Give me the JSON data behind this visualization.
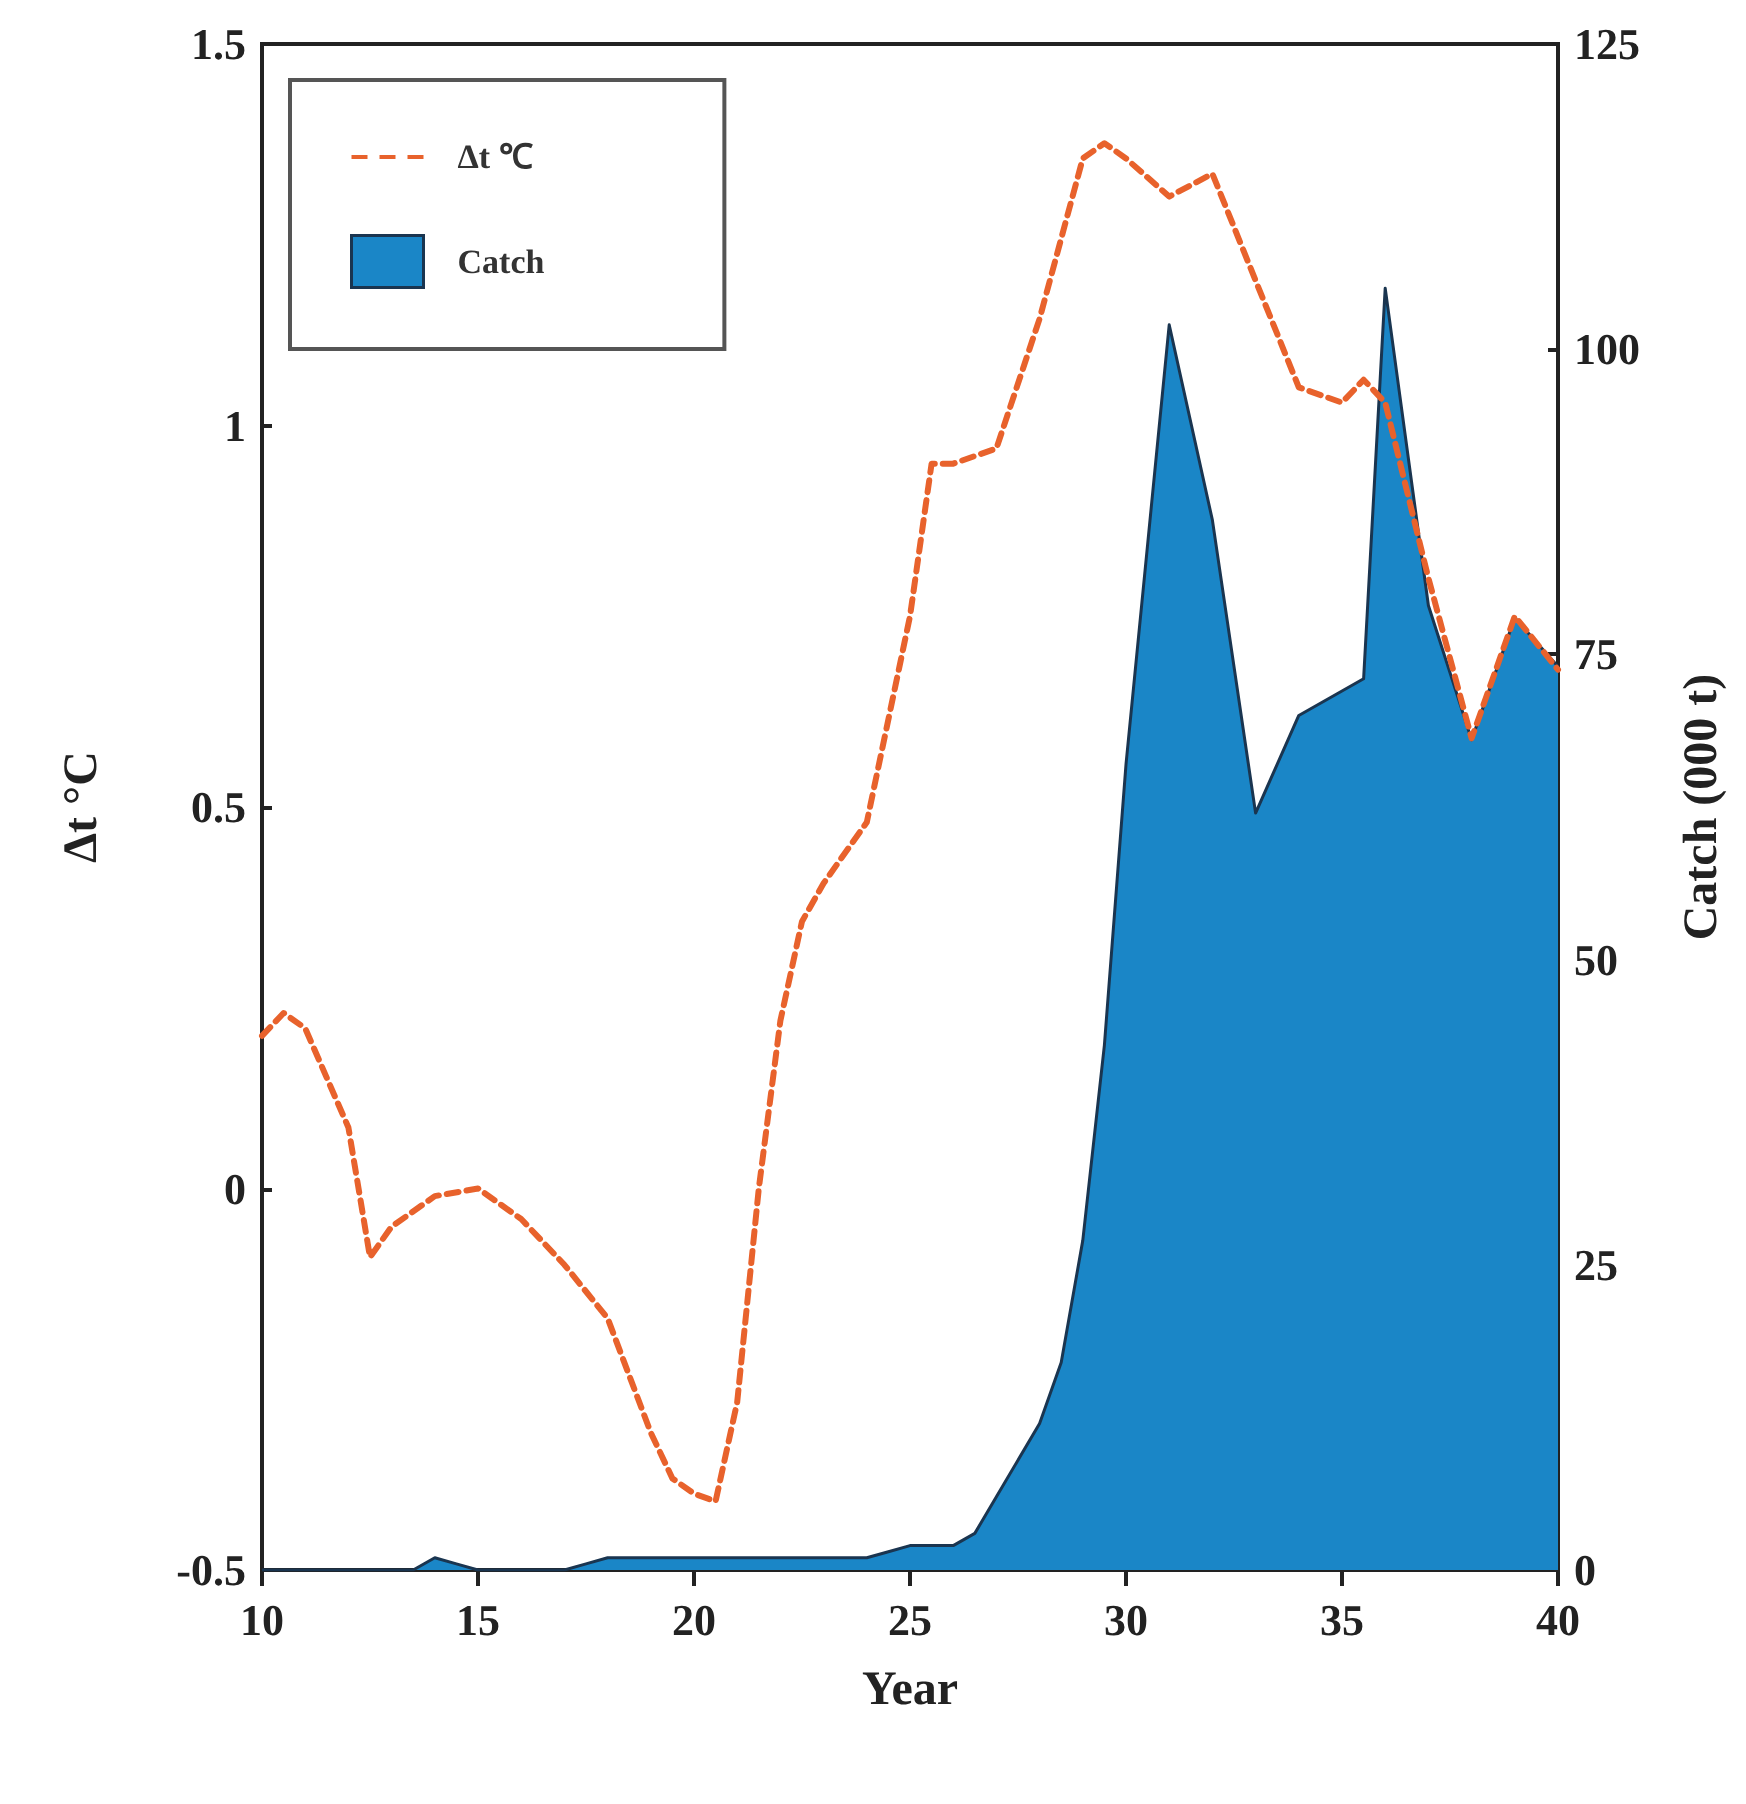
{
  "chart_data": {
    "type": "line",
    "xlabel": "Year",
    "ylabel": "Δt °C",
    "y2label": "Catch (000 t)",
    "xlim": [
      10,
      40
    ],
    "xticks": [
      10,
      15,
      20,
      25,
      30,
      35,
      40
    ],
    "ylim": [
      -0.5,
      1.5
    ],
    "yticks": [
      -0.5,
      0,
      0.5,
      1,
      1.5
    ],
    "y2lim": [
      0,
      125
    ],
    "y2ticks": [
      0,
      25,
      50,
      75,
      100,
      125
    ],
    "legend": "top left",
    "grid": false,
    "marker": "none",
    "series": [
      {
        "name": "Δt ℃",
        "type": "line",
        "color": "#e8622c",
        "line_style": "dashed",
        "x": [
          10,
          10.5,
          11,
          12,
          12.5,
          13,
          14,
          15,
          16,
          17,
          18,
          19,
          19.5,
          20,
          20.5,
          21,
          21.5,
          22,
          22.5,
          23,
          24,
          25,
          25.5,
          26,
          27,
          28,
          29,
          29.5,
          30,
          31,
          32,
          33,
          34,
          35,
          35.5,
          36,
          37,
          38,
          39,
          40
        ],
        "values": [
          0.2,
          0.23,
          0.21,
          0.08,
          -0.09,
          -0.05,
          -0.01,
          0.0,
          -0.04,
          -0.1,
          -0.17,
          -0.32,
          -0.38,
          -0.4,
          -0.41,
          -0.28,
          0.0,
          0.22,
          0.35,
          0.4,
          0.48,
          0.75,
          0.95,
          0.95,
          0.97,
          1.14,
          1.35,
          1.37,
          1.35,
          1.3,
          1.33,
          1.19,
          1.05,
          1.03,
          1.06,
          1.03,
          0.8,
          0.59,
          0.75,
          0.68
        ]
      },
      {
        "name": "Catch",
        "type": "area",
        "axis": "y2",
        "color": "#1a86c7",
        "x": [
          10,
          13.5,
          14,
          14.5,
          15,
          17,
          17.5,
          18,
          24,
          24.5,
          25,
          26,
          26.5,
          27,
          28,
          28.5,
          29,
          29.5,
          30,
          30.5,
          31,
          32,
          33,
          34,
          35,
          35.5,
          36,
          37,
          38,
          39,
          40
        ],
        "values": [
          0,
          0,
          1,
          0.5,
          0,
          0,
          0.5,
          1,
          1,
          1.5,
          2,
          2,
          3,
          6,
          12,
          17,
          27,
          43,
          66,
          84,
          102,
          86,
          62,
          70,
          72,
          73,
          105,
          79,
          68,
          78,
          74
        ]
      }
    ]
  }
}
